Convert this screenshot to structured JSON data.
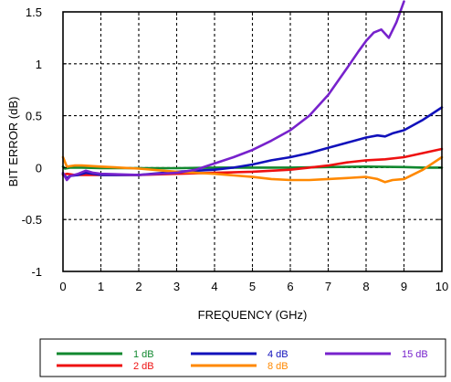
{
  "chart_data": {
    "type": "line",
    "xlabel": "FREQUENCY (GHz)",
    "ylabel": "BIT ERROR (dB)",
    "xlim": [
      0,
      10
    ],
    "ylim": [
      -1,
      1.5
    ],
    "xticks": [
      "0",
      "1",
      "2",
      "3",
      "4",
      "5",
      "6",
      "7",
      "8",
      "9",
      "10"
    ],
    "yticks": [
      "-1",
      "-0.5",
      "0",
      "0.5",
      "1",
      "1.5"
    ],
    "xtick_values": [
      0,
      1,
      2,
      3,
      4,
      5,
      6,
      7,
      8,
      9,
      10
    ],
    "ytick_values": [
      -1,
      -0.5,
      0,
      0.5,
      1,
      1.5
    ],
    "grid": true,
    "legend_position": "bottom",
    "series": [
      {
        "name": "1 dB",
        "color": "#11882f",
        "x": [
          0,
          0.05,
          0.2,
          0.5,
          1,
          2,
          3,
          4,
          5,
          6,
          7,
          8,
          9,
          9.5,
          10
        ],
        "y": [
          0.01,
          -0.01,
          0.0,
          0.0,
          -0.005,
          -0.005,
          -0.005,
          0.0,
          0.0,
          0.0,
          0.005,
          0.01,
          0.005,
          0.0,
          0.0
        ]
      },
      {
        "name": "2 dB",
        "color": "#ee1111",
        "x": [
          0,
          0.1,
          0.3,
          0.5,
          1,
          2,
          3,
          4,
          5,
          6,
          6.5,
          7,
          7.5,
          8,
          8.5,
          9,
          9.5,
          10
        ],
        "y": [
          -0.07,
          -0.06,
          -0.07,
          -0.07,
          -0.07,
          -0.07,
          -0.06,
          -0.05,
          -0.04,
          -0.02,
          0.0,
          0.02,
          0.05,
          0.07,
          0.08,
          0.1,
          0.14,
          0.18
        ]
      },
      {
        "name": "4 dB",
        "color": "#1111bb",
        "x": [
          0,
          0.1,
          0.2,
          0.4,
          0.6,
          0.8,
          1,
          2,
          3,
          3.5,
          4,
          4.5,
          5,
          5.5,
          6,
          6.5,
          7,
          7.5,
          8,
          8.3,
          8.5,
          8.7,
          9,
          9.5,
          10
        ],
        "y": [
          -0.06,
          -0.1,
          -0.08,
          -0.07,
          -0.05,
          -0.06,
          -0.07,
          -0.07,
          -0.04,
          -0.03,
          -0.02,
          0.0,
          0.03,
          0.07,
          0.1,
          0.14,
          0.19,
          0.24,
          0.29,
          0.31,
          0.3,
          0.33,
          0.36,
          0.46,
          0.58
        ]
      },
      {
        "name": "8 dB",
        "color": "#ff8800",
        "x": [
          0,
          0.1,
          0.3,
          0.5,
          1,
          2,
          3,
          4,
          5,
          5.5,
          6,
          6.5,
          7,
          7.5,
          8,
          8.3,
          8.5,
          8.7,
          9,
          9.5,
          10
        ],
        "y": [
          0.1,
          0.01,
          0.02,
          0.02,
          0.01,
          -0.01,
          -0.04,
          -0.06,
          -0.09,
          -0.11,
          -0.12,
          -0.12,
          -0.11,
          -0.1,
          -0.09,
          -0.11,
          -0.14,
          -0.12,
          -0.11,
          -0.02,
          0.1
        ]
      },
      {
        "name": "15 dB",
        "color": "#7722cc",
        "x": [
          0,
          0.1,
          0.2,
          0.4,
          0.6,
          0.8,
          1,
          2,
          3,
          3.5,
          4,
          4.5,
          5,
          5.5,
          6,
          6.5,
          7,
          7.5,
          7.8,
          8,
          8.2,
          8.4,
          8.6,
          8.8,
          9.0
        ],
        "y": [
          -0.05,
          -0.12,
          -0.08,
          -0.06,
          -0.03,
          -0.05,
          -0.06,
          -0.07,
          -0.05,
          -0.02,
          0.04,
          0.1,
          0.17,
          0.26,
          0.36,
          0.5,
          0.7,
          0.96,
          1.12,
          1.22,
          1.3,
          1.33,
          1.25,
          1.4,
          1.6
        ]
      }
    ]
  }
}
